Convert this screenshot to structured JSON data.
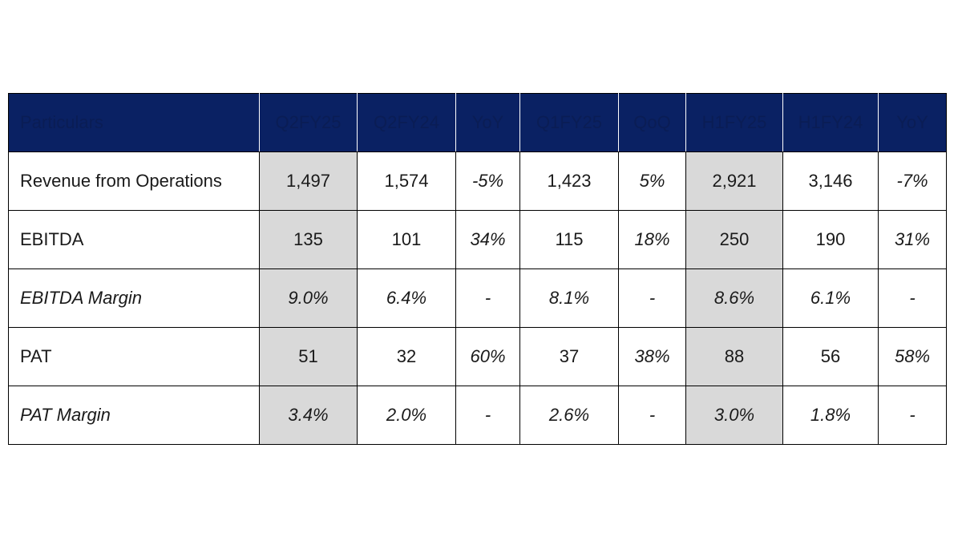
{
  "table": {
    "headers": [
      "Particulars",
      "Q2FY25",
      "Q2FY24",
      "YoY",
      "Q1FY25",
      "QoQ",
      "H1FY25",
      "H1FY24",
      "YoY"
    ],
    "rows": [
      {
        "label": "Revenue from Operations",
        "cells": [
          "1,497",
          "1,574",
          "-5%",
          "1,423",
          "5%",
          "2,921",
          "3,146",
          "-7%"
        ],
        "italic": false
      },
      {
        "label": "EBITDA",
        "cells": [
          "135",
          "101",
          "34%",
          "115",
          "18%",
          "250",
          "190",
          "31%"
        ],
        "italic": false
      },
      {
        "label": "EBITDA Margin",
        "cells": [
          "9.0%",
          "6.4%",
          "-",
          "8.1%",
          "-",
          "8.6%",
          "6.1%",
          "-"
        ],
        "italic": true
      },
      {
        "label": "PAT",
        "cells": [
          "51",
          "32",
          "60%",
          "37",
          "38%",
          "88",
          "56",
          "58%"
        ],
        "italic": false
      },
      {
        "label": "PAT Margin",
        "cells": [
          "3.4%",
          "2.0%",
          "-",
          "2.6%",
          "-",
          "3.0%",
          "1.8%",
          "-"
        ],
        "italic": true
      }
    ],
    "highlight_columns": [
      1,
      6
    ],
    "colors": {
      "header_bg": "#0a2163",
      "header_text": "#0a1d55",
      "highlight_bg": "#d9d9d9",
      "border": "#000000"
    }
  }
}
